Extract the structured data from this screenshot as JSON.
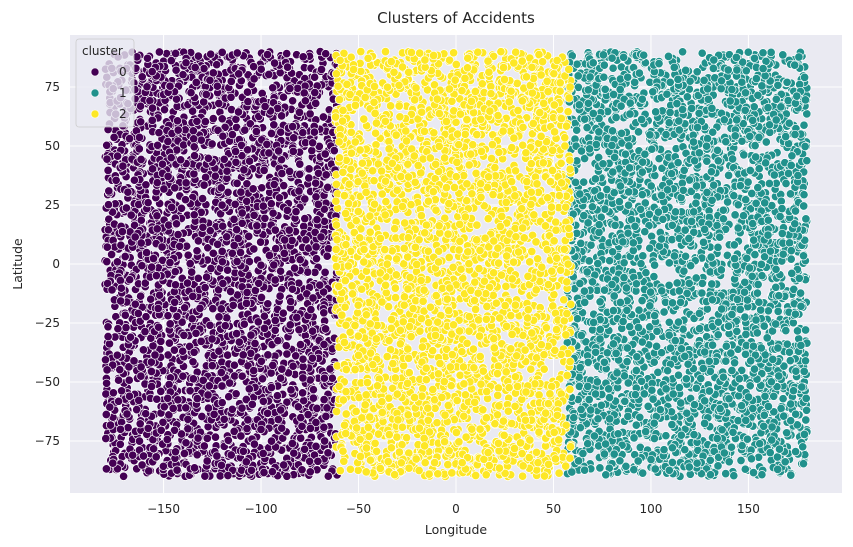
{
  "chart_data": {
    "type": "scatter",
    "title": "Clusters of Accidents",
    "xlabel": "Longitude",
    "ylabel": "Latitude",
    "xlim": [
      -198,
      198
    ],
    "ylim": [
      -97,
      97
    ],
    "xticks": [
      -150,
      -100,
      -50,
      0,
      50,
      100,
      150
    ],
    "yticks": [
      -75,
      -50,
      -25,
      0,
      25,
      50,
      75
    ],
    "grid": true,
    "legend": {
      "title": "cluster",
      "placement": "top-left",
      "entries": [
        "0",
        "1",
        "2"
      ]
    },
    "series": [
      {
        "name": "0",
        "color": "#440154",
        "x_range": [
          -180,
          -61
        ],
        "y_range": [
          -90,
          90
        ],
        "approx_points": 3300
      },
      {
        "name": "1",
        "color": "#21918c",
        "x_range": [
          57,
          180
        ],
        "y_range": [
          -90,
          90
        ],
        "approx_points": 3300
      },
      {
        "name": "2",
        "color": "#fde725",
        "x_range": [
          -62,
          59
        ],
        "y_range": [
          -90,
          90
        ],
        "approx_points": 3300
      }
    ]
  }
}
